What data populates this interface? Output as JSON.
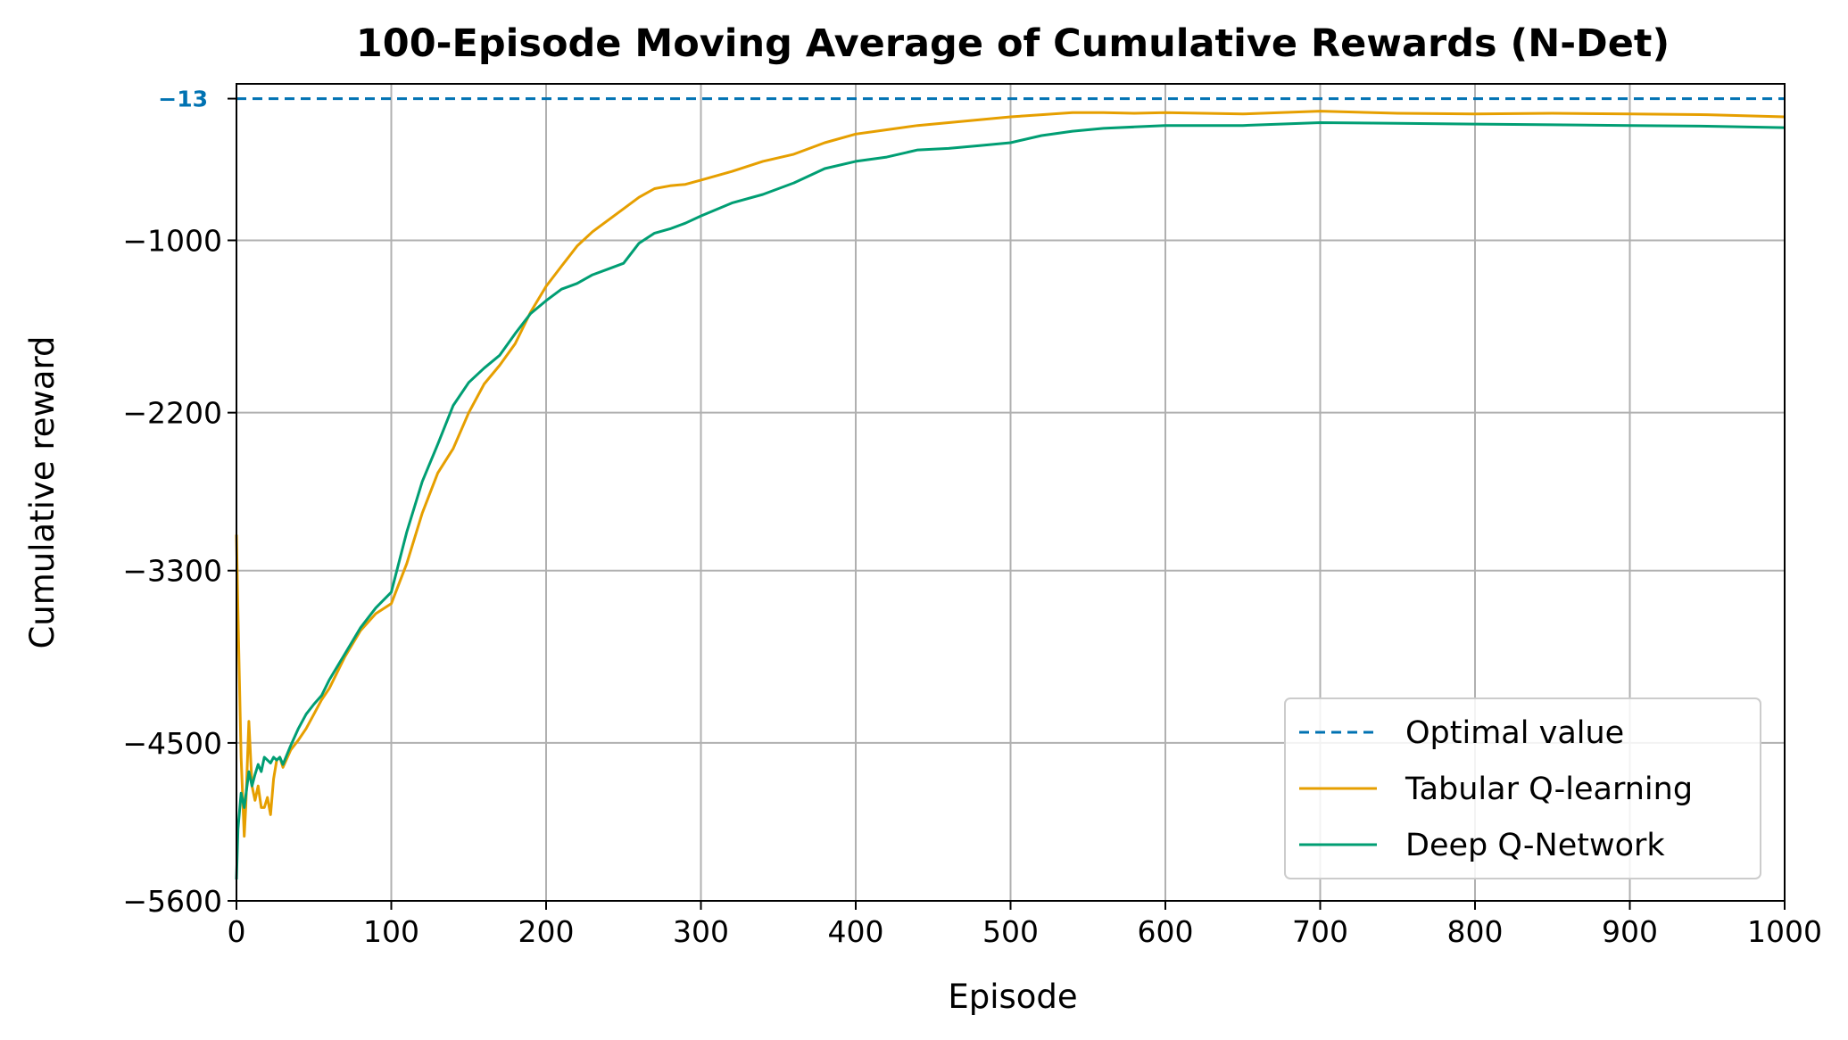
{
  "chart_data": {
    "type": "line",
    "title": "100-Episode Moving Average of Cumulative Rewards (N-Det)",
    "xlabel": "Episode",
    "ylabel": "Cumulative reward",
    "xlim": [
      0,
      1000
    ],
    "ylim": [
      -5600,
      90
    ],
    "xticks": [
      0,
      100,
      200,
      300,
      400,
      500,
      600,
      700,
      800,
      900,
      1000
    ],
    "xtick_labels": [
      "0",
      "100",
      "200",
      "300",
      "400",
      "500",
      "600",
      "700",
      "800",
      "900",
      "1000"
    ],
    "yticks": [
      -5600,
      -4500,
      -3300,
      -2200,
      -1000
    ],
    "ytick_labels": [
      "−5600",
      "−4500",
      "−3300",
      "−2200",
      "−1000"
    ],
    "grid": true,
    "legend_position": "lower right",
    "reference_line": {
      "name": "Optimal value",
      "y": -13,
      "label": "−13",
      "style": "dashed",
      "color": "#0072b2"
    },
    "series": [
      {
        "name": "Tabular Q-learning",
        "color": "#e69f00",
        "x": [
          0,
          1,
          3,
          5,
          6,
          8,
          10,
          12,
          14,
          16,
          18,
          20,
          22,
          24,
          26,
          28,
          30,
          35,
          40,
          45,
          50,
          55,
          60,
          70,
          80,
          90,
          100,
          110,
          120,
          130,
          140,
          150,
          160,
          170,
          180,
          190,
          200,
          210,
          220,
          230,
          240,
          250,
          260,
          270,
          280,
          290,
          300,
          320,
          340,
          360,
          380,
          400,
          420,
          440,
          460,
          480,
          500,
          520,
          540,
          560,
          580,
          600,
          650,
          700,
          750,
          800,
          850,
          900,
          950,
          1000
        ],
        "y": [
          -3050,
          -3600,
          -4600,
          -5150,
          -4950,
          -4350,
          -4800,
          -4900,
          -4800,
          -4950,
          -4950,
          -4880,
          -5000,
          -4750,
          -4620,
          -4600,
          -4670,
          -4550,
          -4480,
          -4400,
          -4300,
          -4200,
          -4120,
          -3900,
          -3720,
          -3600,
          -3530,
          -3250,
          -2900,
          -2620,
          -2450,
          -2200,
          -2000,
          -1870,
          -1720,
          -1500,
          -1320,
          -1180,
          -1040,
          -940,
          -860,
          -780,
          -700,
          -640,
          -620,
          -610,
          -580,
          -520,
          -450,
          -400,
          -320,
          -260,
          -230,
          -200,
          -180,
          -160,
          -140,
          -125,
          -110,
          -110,
          -115,
          -110,
          -120,
          -100,
          -115,
          -120,
          -115,
          -120,
          -125,
          -140
        ]
      },
      {
        "name": "Deep Q-Network",
        "color": "#009e73",
        "x": [
          0,
          1,
          3,
          5,
          6,
          8,
          10,
          12,
          14,
          16,
          18,
          20,
          22,
          24,
          26,
          28,
          30,
          35,
          40,
          45,
          50,
          55,
          60,
          70,
          80,
          90,
          100,
          110,
          120,
          130,
          140,
          150,
          160,
          170,
          180,
          190,
          200,
          210,
          220,
          230,
          240,
          250,
          260,
          270,
          280,
          290,
          300,
          320,
          340,
          360,
          380,
          400,
          420,
          440,
          460,
          480,
          500,
          520,
          540,
          560,
          580,
          600,
          650,
          700,
          750,
          800,
          850,
          900,
          950,
          1000
        ],
        "y": [
          -5450,
          -5100,
          -4850,
          -4950,
          -4870,
          -4700,
          -4800,
          -4720,
          -4650,
          -4700,
          -4600,
          -4620,
          -4640,
          -4600,
          -4620,
          -4600,
          -4650,
          -4520,
          -4400,
          -4300,
          -4230,
          -4170,
          -4060,
          -3880,
          -3700,
          -3560,
          -3450,
          -3030,
          -2680,
          -2420,
          -2150,
          -1990,
          -1890,
          -1800,
          -1650,
          -1510,
          -1420,
          -1340,
          -1300,
          -1240,
          -1200,
          -1160,
          -1020,
          -950,
          -920,
          -880,
          -830,
          -740,
          -680,
          -600,
          -500,
          -450,
          -420,
          -370,
          -360,
          -340,
          -320,
          -270,
          -240,
          -220,
          -210,
          -200,
          -200,
          -180,
          -185,
          -190,
          -195,
          -200,
          -205,
          -215
        ]
      }
    ]
  }
}
